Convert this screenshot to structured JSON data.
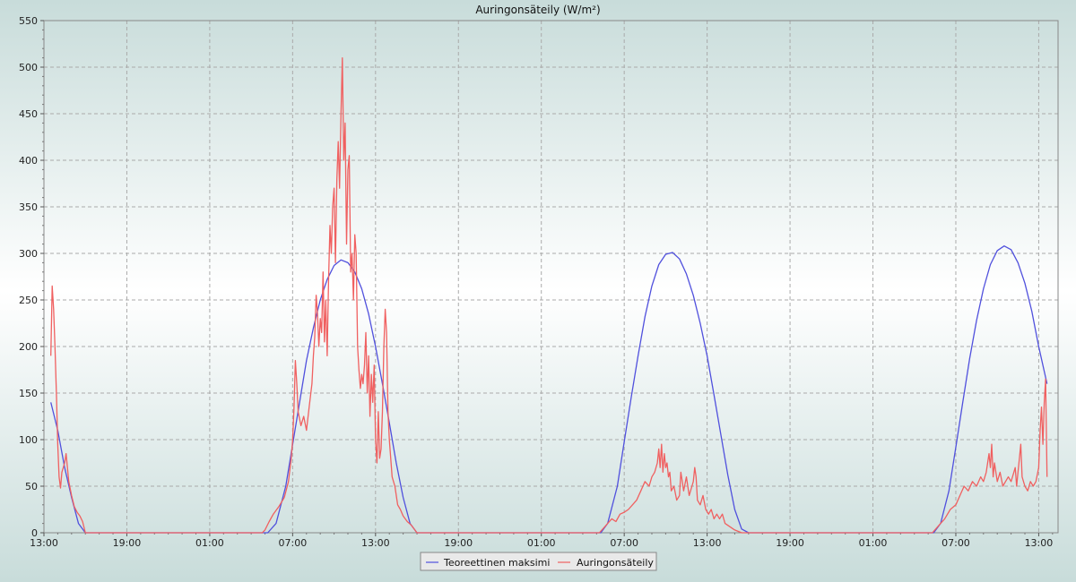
{
  "chart_data": {
    "type": "line",
    "title": "Auringonsäteily (W/m²)",
    "xlabel": "",
    "ylabel": "",
    "ylim": [
      0,
      550
    ],
    "y_ticks": [
      0,
      50,
      100,
      150,
      200,
      250,
      300,
      350,
      400,
      450,
      500,
      550
    ],
    "x_unit": "hours since 13:00 on day 1",
    "xlim": [
      0,
      73.4
    ],
    "x_ticks": [
      {
        "x": 0,
        "label": "13:00"
      },
      {
        "x": 6,
        "label": "19:00"
      },
      {
        "x": 12,
        "label": "01:00"
      },
      {
        "x": 18,
        "label": "07:00"
      },
      {
        "x": 24,
        "label": "13:00"
      },
      {
        "x": 30,
        "label": "19:00"
      },
      {
        "x": 36,
        "label": "01:00"
      },
      {
        "x": 42,
        "label": "07:00"
      },
      {
        "x": 48,
        "label": "13:00"
      },
      {
        "x": 54,
        "label": "19:00"
      },
      {
        "x": 60,
        "label": "01:00"
      },
      {
        "x": 66,
        "label": "07:00"
      },
      {
        "x": 72,
        "label": "13:00"
      }
    ],
    "grid": true,
    "legend_position": "bottom-center",
    "series": [
      {
        "name": "Teoreettinen maksimi",
        "color": "#5050dd",
        "points": [
          [
            0.5,
            140
          ],
          [
            1,
            110
          ],
          [
            1.5,
            70
          ],
          [
            2,
            38
          ],
          [
            2.5,
            10
          ],
          [
            3,
            0
          ],
          [
            16.2,
            0
          ],
          [
            16.8,
            10
          ],
          [
            17.5,
            50
          ],
          [
            18,
            95
          ],
          [
            18.5,
            140
          ],
          [
            19,
            185
          ],
          [
            19.5,
            220
          ],
          [
            20,
            250
          ],
          [
            20.5,
            272
          ],
          [
            21,
            287
          ],
          [
            21.5,
            293
          ],
          [
            22,
            290
          ],
          [
            22.5,
            280
          ],
          [
            23,
            262
          ],
          [
            23.5,
            235
          ],
          [
            24,
            200
          ],
          [
            24.5,
            160
          ],
          [
            25,
            118
          ],
          [
            25.5,
            75
          ],
          [
            26,
            38
          ],
          [
            26.5,
            10
          ],
          [
            27,
            0
          ],
          [
            40.3,
            0
          ],
          [
            40.8,
            10
          ],
          [
            41.5,
            50
          ],
          [
            42,
            98
          ],
          [
            42.5,
            145
          ],
          [
            43,
            190
          ],
          [
            43.5,
            232
          ],
          [
            44,
            265
          ],
          [
            44.5,
            288
          ],
          [
            45,
            299
          ],
          [
            45.5,
            301
          ],
          [
            46,
            294
          ],
          [
            46.5,
            278
          ],
          [
            47,
            255
          ],
          [
            47.5,
            225
          ],
          [
            48,
            190
          ],
          [
            48.5,
            148
          ],
          [
            49,
            105
          ],
          [
            49.5,
            62
          ],
          [
            50,
            25
          ],
          [
            50.5,
            4
          ],
          [
            51,
            0
          ],
          [
            64.4,
            0
          ],
          [
            64.9,
            10
          ],
          [
            65.5,
            45
          ],
          [
            66,
            92
          ],
          [
            66.5,
            140
          ],
          [
            67,
            187
          ],
          [
            67.5,
            228
          ],
          [
            68,
            262
          ],
          [
            68.5,
            288
          ],
          [
            69,
            303
          ],
          [
            69.5,
            308
          ],
          [
            70,
            304
          ],
          [
            70.5,
            290
          ],
          [
            71,
            268
          ],
          [
            71.5,
            238
          ],
          [
            72,
            200
          ],
          [
            72.6,
            160
          ]
        ]
      },
      {
        "name": "Auringonsäteily",
        "color": "#f06060",
        "points": [
          [
            0.5,
            190
          ],
          [
            0.6,
            265
          ],
          [
            0.7,
            240
          ],
          [
            0.8,
            200
          ],
          [
            0.9,
            150
          ],
          [
            1,
            95
          ],
          [
            1.1,
            60
          ],
          [
            1.2,
            48
          ],
          [
            1.3,
            65
          ],
          [
            1.5,
            75
          ],
          [
            1.6,
            85
          ],
          [
            1.7,
            70
          ],
          [
            1.8,
            55
          ],
          [
            2,
            40
          ],
          [
            2.2,
            28
          ],
          [
            2.4,
            22
          ],
          [
            2.6,
            18
          ],
          [
            2.8,
            12
          ],
          [
            3,
            0
          ],
          [
            15.8,
            0
          ],
          [
            16,
            3
          ],
          [
            16.3,
            12
          ],
          [
            16.6,
            20
          ],
          [
            17,
            28
          ],
          [
            17.4,
            38
          ],
          [
            17.7,
            55
          ],
          [
            17.9,
            80
          ],
          [
            18,
            100
          ],
          [
            18.1,
            135
          ],
          [
            18.2,
            185
          ],
          [
            18.3,
            160
          ],
          [
            18.4,
            130
          ],
          [
            18.6,
            115
          ],
          [
            18.8,
            125
          ],
          [
            19,
            110
          ],
          [
            19.2,
            135
          ],
          [
            19.4,
            160
          ],
          [
            19.5,
            190
          ],
          [
            19.6,
            210
          ],
          [
            19.7,
            255
          ],
          [
            19.8,
            235
          ],
          [
            19.9,
            200
          ],
          [
            20,
            230
          ],
          [
            20.1,
            215
          ],
          [
            20.2,
            280
          ],
          [
            20.3,
            205
          ],
          [
            20.4,
            250
          ],
          [
            20.5,
            190
          ],
          [
            20.6,
            270
          ],
          [
            20.7,
            330
          ],
          [
            20.8,
            300
          ],
          [
            20.9,
            350
          ],
          [
            21,
            370
          ],
          [
            21.1,
            290
          ],
          [
            21.2,
            380
          ],
          [
            21.3,
            420
          ],
          [
            21.4,
            370
          ],
          [
            21.5,
            450
          ],
          [
            21.6,
            510
          ],
          [
            21.7,
            400
          ],
          [
            21.8,
            440
          ],
          [
            21.9,
            310
          ],
          [
            22,
            390
          ],
          [
            22.1,
            405
          ],
          [
            22.2,
            280
          ],
          [
            22.3,
            300
          ],
          [
            22.4,
            250
          ],
          [
            22.5,
            320
          ],
          [
            22.6,
            300
          ],
          [
            22.7,
            200
          ],
          [
            22.8,
            175
          ],
          [
            22.9,
            155
          ],
          [
            23,
            170
          ],
          [
            23.1,
            160
          ],
          [
            23.2,
            180
          ],
          [
            23.3,
            215
          ],
          [
            23.4,
            150
          ],
          [
            23.5,
            190
          ],
          [
            23.6,
            125
          ],
          [
            23.7,
            170
          ],
          [
            23.8,
            140
          ],
          [
            23.9,
            180
          ],
          [
            24,
            100
          ],
          [
            24.1,
            75
          ],
          [
            24.2,
            130
          ],
          [
            24.3,
            80
          ],
          [
            24.4,
            90
          ],
          [
            24.5,
            130
          ],
          [
            24.6,
            200
          ],
          [
            24.7,
            240
          ],
          [
            24.8,
            215
          ],
          [
            24.9,
            130
          ],
          [
            25,
            100
          ],
          [
            25.2,
            60
          ],
          [
            25.4,
            50
          ],
          [
            25.6,
            30
          ],
          [
            25.8,
            25
          ],
          [
            26,
            18
          ],
          [
            26.3,
            12
          ],
          [
            26.6,
            8
          ],
          [
            27,
            0
          ],
          [
            40.2,
            0
          ],
          [
            40.5,
            5
          ],
          [
            40.8,
            10
          ],
          [
            41.1,
            15
          ],
          [
            41.4,
            12
          ],
          [
            41.7,
            20
          ],
          [
            42,
            22
          ],
          [
            42.3,
            25
          ],
          [
            42.6,
            30
          ],
          [
            42.9,
            35
          ],
          [
            43.2,
            45
          ],
          [
            43.5,
            55
          ],
          [
            43.8,
            50
          ],
          [
            44,
            60
          ],
          [
            44.2,
            65
          ],
          [
            44.4,
            75
          ],
          [
            44.5,
            90
          ],
          [
            44.6,
            70
          ],
          [
            44.7,
            95
          ],
          [
            44.8,
            65
          ],
          [
            44.9,
            85
          ],
          [
            45,
            70
          ],
          [
            45.1,
            75
          ],
          [
            45.2,
            60
          ],
          [
            45.3,
            65
          ],
          [
            45.4,
            45
          ],
          [
            45.6,
            50
          ],
          [
            45.8,
            35
          ],
          [
            46,
            40
          ],
          [
            46.1,
            65
          ],
          [
            46.2,
            55
          ],
          [
            46.3,
            45
          ],
          [
            46.5,
            60
          ],
          [
            46.7,
            40
          ],
          [
            46.9,
            50
          ],
          [
            47,
            55
          ],
          [
            47.1,
            70
          ],
          [
            47.2,
            60
          ],
          [
            47.3,
            35
          ],
          [
            47.5,
            30
          ],
          [
            47.7,
            40
          ],
          [
            47.9,
            25
          ],
          [
            48.1,
            20
          ],
          [
            48.3,
            25
          ],
          [
            48.5,
            15
          ],
          [
            48.7,
            20
          ],
          [
            48.9,
            15
          ],
          [
            49.1,
            20
          ],
          [
            49.3,
            10
          ],
          [
            49.5,
            8
          ],
          [
            50,
            3
          ],
          [
            50.5,
            0
          ],
          [
            64.3,
            0
          ],
          [
            64.6,
            5
          ],
          [
            64.9,
            10
          ],
          [
            65.2,
            15
          ],
          [
            65.6,
            25
          ],
          [
            66,
            30
          ],
          [
            66.3,
            40
          ],
          [
            66.6,
            50
          ],
          [
            66.9,
            45
          ],
          [
            67.2,
            55
          ],
          [
            67.5,
            50
          ],
          [
            67.8,
            60
          ],
          [
            68,
            55
          ],
          [
            68.2,
            65
          ],
          [
            68.4,
            85
          ],
          [
            68.5,
            70
          ],
          [
            68.6,
            95
          ],
          [
            68.7,
            60
          ],
          [
            68.8,
            75
          ],
          [
            69,
            55
          ],
          [
            69.2,
            65
          ],
          [
            69.4,
            50
          ],
          [
            69.6,
            55
          ],
          [
            69.8,
            60
          ],
          [
            70,
            55
          ],
          [
            70.2,
            65
          ],
          [
            70.3,
            70
          ],
          [
            70.4,
            50
          ],
          [
            70.5,
            65
          ],
          [
            70.6,
            80
          ],
          [
            70.7,
            95
          ],
          [
            70.8,
            60
          ],
          [
            71,
            50
          ],
          [
            71.2,
            45
          ],
          [
            71.4,
            55
          ],
          [
            71.6,
            50
          ],
          [
            71.8,
            55
          ],
          [
            72,
            70
          ],
          [
            72.1,
            110
          ],
          [
            72.2,
            135
          ],
          [
            72.3,
            95
          ],
          [
            72.4,
            140
          ],
          [
            72.5,
            165
          ],
          [
            72.6,
            60
          ]
        ]
      }
    ]
  }
}
